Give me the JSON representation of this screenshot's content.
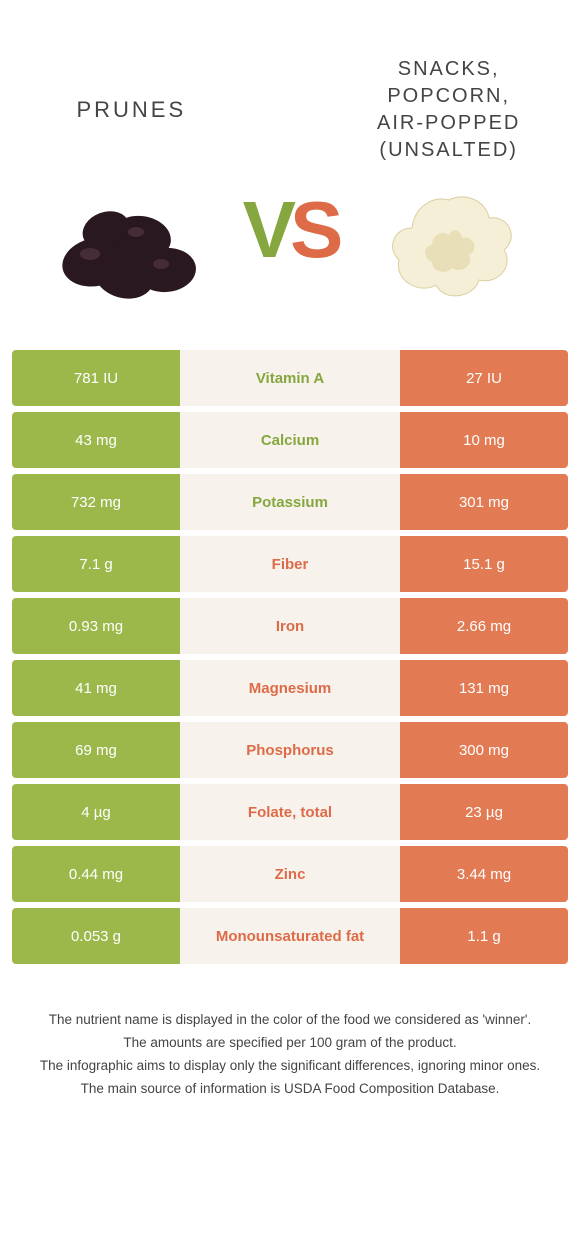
{
  "colors": {
    "left_bg": "#9cb84a",
    "right_bg": "#e27a54",
    "mid_bg": "#f7f3ec",
    "left_text": "#86a73f",
    "right_text": "#de6b48"
  },
  "food_left": {
    "title": "PRUNES"
  },
  "food_right": {
    "title": "SNACKS,\nPOPCORN,\nAIR-POPPED\n(UNSALTED)"
  },
  "vs": {
    "v": "V",
    "s": "S"
  },
  "rows": [
    {
      "label": "Vitamin A",
      "left": "781 IU",
      "right": "27 IU",
      "winner": "left"
    },
    {
      "label": "Calcium",
      "left": "43 mg",
      "right": "10 mg",
      "winner": "left"
    },
    {
      "label": "Potassium",
      "left": "732 mg",
      "right": "301 mg",
      "winner": "left"
    },
    {
      "label": "Fiber",
      "left": "7.1 g",
      "right": "15.1 g",
      "winner": "right"
    },
    {
      "label": "Iron",
      "left": "0.93 mg",
      "right": "2.66 mg",
      "winner": "right"
    },
    {
      "label": "Magnesium",
      "left": "41 mg",
      "right": "131 mg",
      "winner": "right"
    },
    {
      "label": "Phosphorus",
      "left": "69 mg",
      "right": "300 mg",
      "winner": "right"
    },
    {
      "label": "Folate, total",
      "left": "4 µg",
      "right": "23 µg",
      "winner": "right"
    },
    {
      "label": "Zinc",
      "left": "0.44 mg",
      "right": "3.44 mg",
      "winner": "right"
    },
    {
      "label": "Monounsaturated fat",
      "left": "0.053 g",
      "right": "1.1 g",
      "winner": "right"
    }
  ],
  "footer": {
    "l1": "The nutrient name is displayed in the color of the food we considered as 'winner'.",
    "l2": "The amounts are specified per 100 gram of the product.",
    "l3": "The infographic aims to display only the significant differences, ignoring minor ones.",
    "l4": "The main source of information is USDA Food Composition Database."
  }
}
